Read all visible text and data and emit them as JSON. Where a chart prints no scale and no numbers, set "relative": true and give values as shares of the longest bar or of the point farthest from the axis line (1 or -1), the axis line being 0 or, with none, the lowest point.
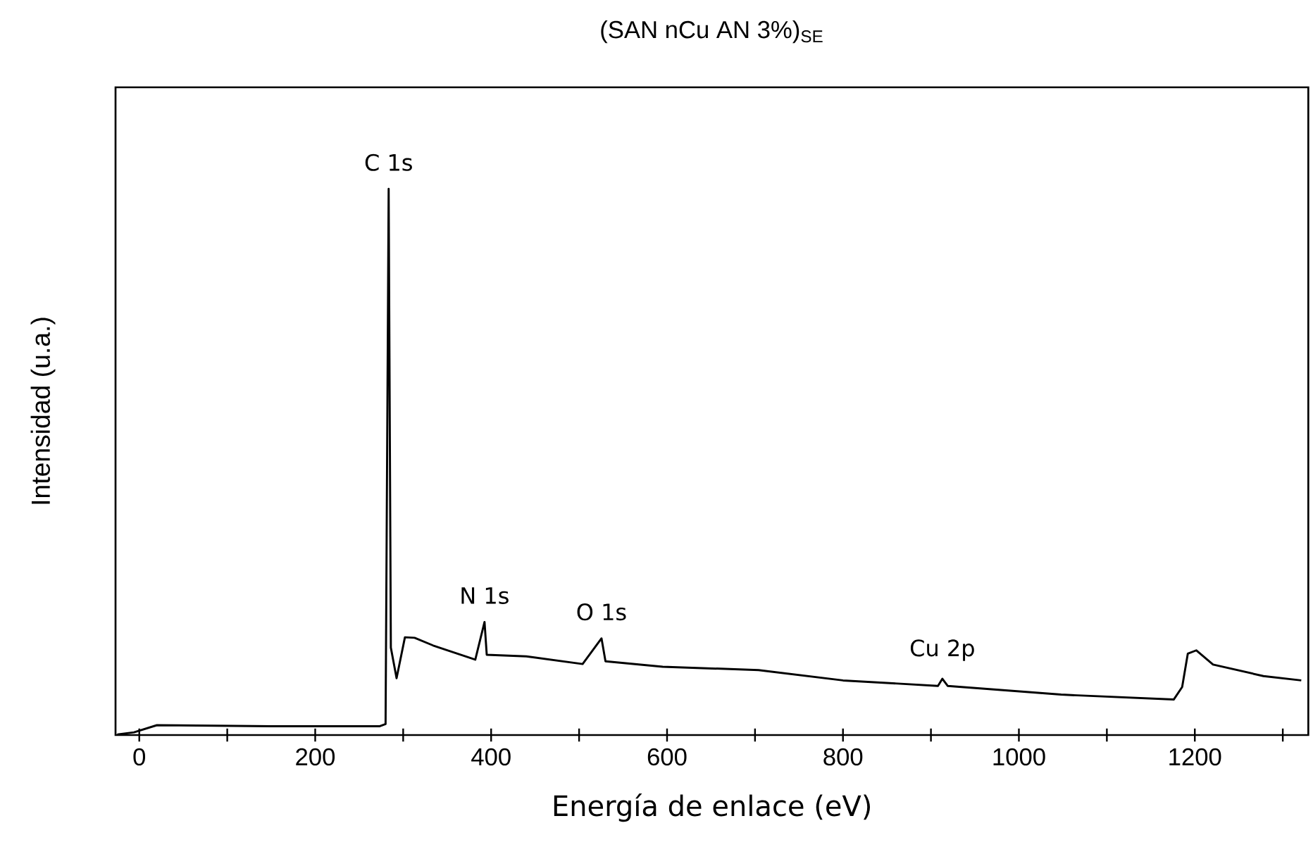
{
  "chart_data": {
    "type": "line",
    "relative": true,
    "title": "(SAN nCu AN 3%)$_{SE}$",
    "xlabel": "Energía de enlace (eV)",
    "ylabel": "Intensidad (u.a.)",
    "xlim": [
      -27,
      1329
    ],
    "xticks": [
      0,
      {
        "value": 100,
        "label": null
      },
      200,
      {
        "value": 300,
        "label": null
      },
      400,
      {
        "value": 500,
        "label": null
      },
      600,
      {
        "value": 700,
        "label": null
      },
      800,
      {
        "value": 900,
        "label": null
      },
      1000,
      {
        "value": 1100,
        "label": null
      },
      1200,
      {
        "value": 1300,
        "label": null
      }
    ],
    "tick_labels": "x",
    "marker": "none",
    "line_style": "solid",
    "series": [
      {
        "color": "#000000",
        "x": [
          -25,
          -6,
          20,
          150,
          273,
          280,
          283.5,
          286,
          292.5,
          302,
          313,
          334,
          382,
          392.5,
          395,
          440,
          504,
          525.5,
          530,
          595,
          704,
          800,
          908,
          913,
          919,
          1048,
          1176,
          1185.6,
          1192,
          1201.6,
          1220.7,
          1278,
          1321
        ],
        "values": [
          0.001,
          0.005,
          0.018,
          0.016,
          0.016,
          0.02,
          1.0,
          0.16,
          0.104,
          0.179,
          0.178,
          0.164,
          0.138,
          0.207,
          0.147,
          0.144,
          0.13,
          0.177,
          0.135,
          0.125,
          0.119,
          0.1,
          0.09,
          0.103,
          0.09,
          0.074,
          0.065,
          0.088,
          0.149,
          0.155,
          0.129,
          0.108,
          0.1
        ]
      }
    ],
    "annotations": [
      {
        "text": "C 1s",
        "x": 283.5,
        "y": 1.0
      },
      {
        "text": "N 1s",
        "x": 392.5,
        "y": 0.207
      },
      {
        "text": "O 1s",
        "x": 525.5,
        "y": 0.177
      },
      {
        "text": "Cu 2p",
        "x": 913,
        "y": 0.103
      }
    ]
  }
}
